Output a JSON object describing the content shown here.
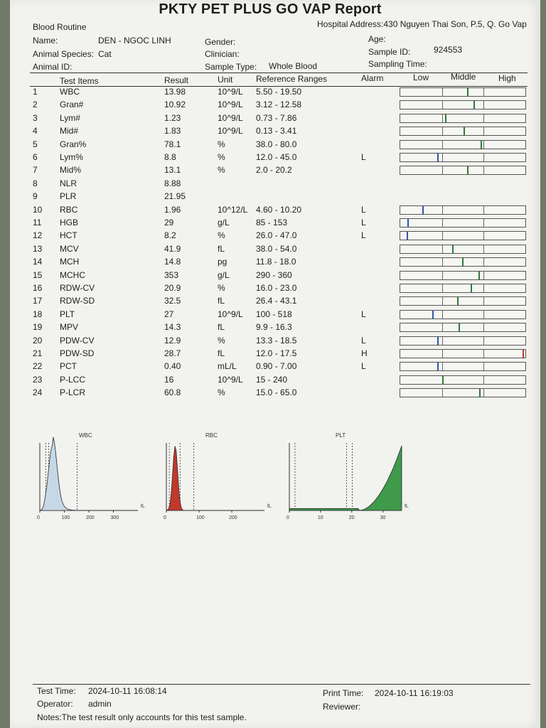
{
  "report": {
    "title": "PKTY PET PLUS GO VAP Report",
    "section": "Blood Routine",
    "hospital_address": "Hospital Address:430 Nguyen Thai Son, P.5, Q. Go Vap"
  },
  "patient": {
    "name_label": "Name:",
    "name_value": "DEN - NGOC LINH",
    "gender_label": "Gender:",
    "age_label": "Age:",
    "species_label": "Animal Species:",
    "species_value": "Cat",
    "clinician_label": "Clinician:",
    "sample_id_label": "Sample ID:",
    "sample_id_value": "924553",
    "animal_id_label": "Animal ID:",
    "sample_type_label": "Sample Type:",
    "sample_type_value": "Whole Blood",
    "sampling_time_label": "Sampling Time:"
  },
  "columns": {
    "items": "Test Items",
    "result": "Result",
    "unit": "Unit",
    "ref": "Reference Ranges",
    "alarm": "Alarm",
    "low": "Low",
    "middle": "Middle",
    "high": "High"
  },
  "results": [
    {
      "no": "1",
      "item": "WBC",
      "result": "13.98",
      "unit": "10^9/L",
      "ref": "5.50 - 19.50",
      "alarm": "",
      "bar": 0.54
    },
    {
      "no": "2",
      "item": "Gran#",
      "result": "10.92",
      "unit": "10^9/L",
      "ref": "3.12 - 12.58",
      "alarm": "",
      "bar": 0.59
    },
    {
      "no": "3",
      "item": "Lym#",
      "result": "1.23",
      "unit": "10^9/L",
      "ref": "0.73 - 7.86",
      "alarm": "",
      "bar": 0.36
    },
    {
      "no": "4",
      "item": "Mid#",
      "result": "1.83",
      "unit": "10^9/L",
      "ref": "0.13 - 3.41",
      "alarm": "",
      "bar": 0.51
    },
    {
      "no": "5",
      "item": "Gran%",
      "result": "78.1",
      "unit": "%",
      "ref": "38.0 - 80.0",
      "alarm": "",
      "bar": 0.65
    },
    {
      "no": "6",
      "item": "Lym%",
      "result": "8.8",
      "unit": "%",
      "ref": "12.0 - 45.0",
      "alarm": "L",
      "bar": 0.3
    },
    {
      "no": "7",
      "item": "Mid%",
      "result": "13.1",
      "unit": "%",
      "ref": "2.0 - 20.2",
      "alarm": "",
      "bar": 0.54
    },
    {
      "no": "8",
      "item": "NLR",
      "result": "8.88",
      "unit": "",
      "ref": "",
      "alarm": ""
    },
    {
      "no": "9",
      "item": "PLR",
      "result": "21.95",
      "unit": "",
      "ref": "",
      "alarm": ""
    },
    {
      "no": "10",
      "item": "RBC",
      "result": "1.96",
      "unit": "10^12/L",
      "ref": "4.60 - 10.20",
      "alarm": "L",
      "bar": 0.18
    },
    {
      "no": "11",
      "item": "HGB",
      "result": "29",
      "unit": "g/L",
      "ref": "85 - 153",
      "alarm": "L",
      "bar": 0.06
    },
    {
      "no": "12",
      "item": "HCT",
      "result": "8.2",
      "unit": "%",
      "ref": "26.0 - 47.0",
      "alarm": "L",
      "bar": 0.05
    },
    {
      "no": "13",
      "item": "MCV",
      "result": "41.9",
      "unit": "fL",
      "ref": "38.0 - 54.0",
      "alarm": "",
      "bar": 0.42
    },
    {
      "no": "14",
      "item": "MCH",
      "result": "14.8",
      "unit": "pg",
      "ref": "11.8 - 18.0",
      "alarm": "",
      "bar": 0.5
    },
    {
      "no": "15",
      "item": "MCHC",
      "result": "353",
      "unit": "g/L",
      "ref": "290 - 360",
      "alarm": "",
      "bar": 0.63
    },
    {
      "no": "16",
      "item": "RDW-CV",
      "result": "20.9",
      "unit": "%",
      "ref": "16.0 - 23.0",
      "alarm": "",
      "bar": 0.57
    },
    {
      "no": "17",
      "item": "RDW-SD",
      "result": "32.5",
      "unit": "fL",
      "ref": "26.4 - 43.1",
      "alarm": "",
      "bar": 0.46
    },
    {
      "no": "18",
      "item": "PLT",
      "result": "27",
      "unit": "10^9/L",
      "ref": "100 - 518",
      "alarm": "L",
      "bar": 0.26
    },
    {
      "no": "19",
      "item": "MPV",
      "result": "14.3",
      "unit": "fL",
      "ref": "9.9 - 16.3",
      "alarm": "",
      "bar": 0.47
    },
    {
      "no": "20",
      "item": "PDW-CV",
      "result": "12.9",
      "unit": "%",
      "ref": "13.3 - 18.5",
      "alarm": "L",
      "bar": 0.3
    },
    {
      "no": "21",
      "item": "PDW-SD",
      "result": "28.7",
      "unit": "fL",
      "ref": "12.0 - 17.5",
      "alarm": "H",
      "bar": 0.99
    },
    {
      "no": "22",
      "item": "PCT",
      "result": "0.40",
      "unit": "mL/L",
      "ref": "0.90 - 7.00",
      "alarm": "L",
      "bar": 0.3
    },
    {
      "no": "23",
      "item": "P-LCC",
      "result": "16",
      "unit": "10^9/L",
      "ref": "15 - 240",
      "alarm": "",
      "bar": 0.34
    },
    {
      "no": "24",
      "item": "P-LCR",
      "result": "60.8",
      "unit": "%",
      "ref": "15.0 - 65.0",
      "alarm": "",
      "bar": 0.64
    }
  ],
  "colors": {
    "bar_normal": "#2f7a34",
    "bar_low": "#2f57a8",
    "bar_high": "#c0392b",
    "wbc_fill": "#c6d8e6",
    "rbc_fill": "#c0392b",
    "plt_fill": "#3f9a4a"
  },
  "histograms": [
    {
      "label": "WBC",
      "unit": "fL",
      "ticks": [
        "0",
        "100",
        "200",
        "300"
      ],
      "ticks_max": 400
    },
    {
      "label": "RBC",
      "unit": "fL",
      "ticks": [
        "0",
        "100",
        "200"
      ],
      "ticks_max": 300
    },
    {
      "label": "PLT",
      "unit": "fL",
      "ticks": [
        "0",
        "10",
        "20",
        "30"
      ],
      "ticks_max": 36
    }
  ],
  "footer": {
    "test_time_label": "Test Time:",
    "test_time_value": "2024-10-11 16:08:14",
    "operator_label": "Operator:",
    "operator_value": "admin",
    "notes": "Notes:The test result only accounts for this test sample.",
    "print_time_label": "Print Time:",
    "print_time_value": "2024-10-11 16:19:03",
    "reviewer_label": "Reviewer:"
  }
}
